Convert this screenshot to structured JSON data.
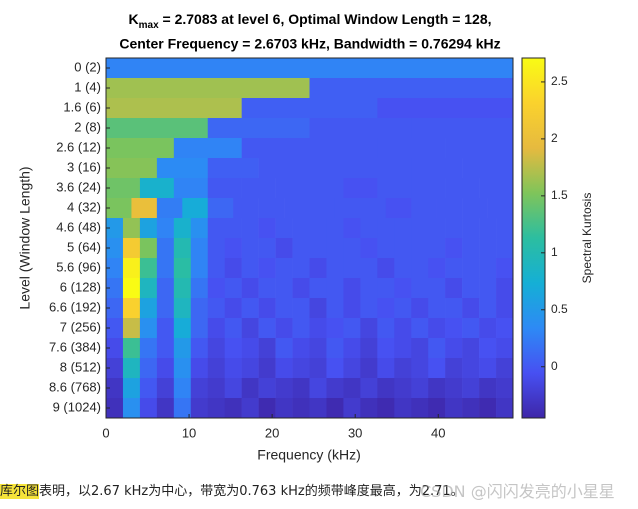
{
  "chart_data": {
    "type": "heatmap",
    "title_symbol": "K",
    "title_subscript": "max",
    "title_line1": " = 2.7083 at level 6, Optimal Window Length = 128,",
    "title_line2": "Center Frequency = 2.6703 kHz, Bandwidth = 0.76294 kHz",
    "xlabel": "Frequency (kHz)",
    "ylabel": "Level (Window Length)",
    "colorbar_label": "Spectral Kurtosis",
    "colormap": "parula",
    "categories": [
      "0  (2)",
      "1  (4)",
      "1.6  (6)",
      "2  (8)",
      "2.6  (12)",
      "3  (16)",
      "3.6  (24)",
      "4  (32)",
      "4.6  (48)",
      "5  (64)",
      "5.6  (96)",
      "6  (128)",
      "6.6  (192)",
      "7  (256)",
      "7.6  (384)",
      "8  (512)",
      "8.6  (768)",
      "9 (1024)"
    ],
    "xlim": [
      0,
      49
    ],
    "xticks": [
      0,
      10,
      20,
      30,
      40
    ],
    "clim": [
      -0.45,
      2.71
    ],
    "cticks": [
      0,
      0.5,
      1,
      1.5,
      2,
      2.5
    ],
    "z": [
      [
        0.3
      ],
      [
        1.65,
        0.05
      ],
      [
        1.7,
        0.05,
        -0.05
      ],
      [
        1.35,
        0.1,
        0.0,
        0.0
      ],
      [
        1.5,
        0.3,
        0.0,
        0.0,
        0.0,
        0.0
      ],
      [
        1.55,
        0.35,
        0.05,
        0.0,
        0.0,
        0.0,
        0.0,
        0.0
      ],
      [
        1.45,
        0.8,
        0.3,
        0.0,
        0.0,
        0.0,
        0.0,
        -0.05,
        0.0,
        0.0,
        0.0,
        0.0
      ],
      [
        1.5,
        2.0,
        0.25,
        0.7,
        0.1,
        0.0,
        0.0,
        0.0,
        0.0,
        0.0,
        0.0,
        -0.05,
        0.0,
        0.0,
        0.0,
        0.0
      ],
      [
        0.5,
        1.6,
        0.6,
        0.3,
        0.8,
        0.4,
        0.0,
        0.0,
        0.0,
        -0.05,
        0.0,
        0.0,
        0.0,
        0.0,
        -0.05,
        0.0,
        0.0,
        0.0,
        0.0,
        0.0,
        0.0,
        0.0,
        0.0,
        0.0
      ],
      [
        0.4,
        2.2,
        1.5,
        0.2,
        1.0,
        0.3,
        0.0,
        -0.05,
        0.0,
        0.0,
        -0.1,
        0.0,
        0.0,
        0.0,
        0.0,
        -0.05,
        0.0,
        0.0,
        0.0,
        0.0,
        -0.05,
        0.0,
        0.0,
        0.0
      ],
      [
        0.3,
        2.6,
        1.2,
        0.2,
        1.1,
        0.3,
        0.0,
        -0.1,
        0.0,
        -0.05,
        0.0,
        0.0,
        -0.1,
        0.0,
        0.0,
        0.0,
        -0.1,
        0.0,
        0.0,
        -0.05,
        0.0,
        0.0,
        0.0,
        -0.05
      ],
      [
        0.2,
        2.71,
        0.9,
        0.1,
        1.0,
        0.2,
        -0.05,
        0.0,
        -0.1,
        0.0,
        0.0,
        -0.1,
        0.0,
        0.0,
        -0.1,
        0.0,
        0.0,
        -0.05,
        0.0,
        0.0,
        -0.1,
        0.0,
        0.0,
        -0.1
      ],
      [
        0.1,
        2.3,
        0.6,
        0.1,
        0.9,
        0.1,
        0.0,
        -0.1,
        0.0,
        -0.1,
        0.0,
        0.0,
        -0.15,
        0.0,
        -0.1,
        0.0,
        -0.05,
        0.0,
        -0.1,
        0.0,
        0.0,
        -0.1,
        0.0,
        -0.1
      ],
      [
        0.0,
        1.8,
        0.4,
        0.0,
        0.7,
        0.1,
        -0.1,
        0.0,
        -0.15,
        0.0,
        -0.1,
        0.0,
        -0.1,
        -0.05,
        0.0,
        -0.15,
        0.0,
        -0.1,
        0.0,
        -0.1,
        -0.05,
        0.0,
        -0.1,
        -0.05
      ],
      [
        -0.1,
        1.2,
        0.2,
        0.0,
        0.5,
        0.0,
        -0.15,
        -0.05,
        -0.1,
        -0.2,
        0.0,
        -0.1,
        -0.15,
        0.0,
        -0.1,
        -0.2,
        -0.05,
        -0.1,
        -0.15,
        0.0,
        -0.1,
        -0.15,
        -0.05,
        -0.1
      ],
      [
        -0.2,
        0.9,
        0.1,
        -0.1,
        0.4,
        -0.1,
        -0.2,
        -0.1,
        -0.15,
        -0.25,
        -0.1,
        -0.15,
        -0.2,
        -0.05,
        -0.15,
        -0.25,
        -0.1,
        -0.2,
        -0.15,
        -0.05,
        -0.2,
        -0.15,
        -0.1,
        -0.2
      ],
      [
        -0.3,
        0.6,
        0.0,
        -0.2,
        0.3,
        -0.2,
        -0.25,
        -0.15,
        -0.3,
        -0.2,
        -0.25,
        -0.3,
        -0.15,
        -0.25,
        -0.3,
        -0.2,
        -0.3,
        -0.25,
        -0.2,
        -0.3,
        -0.25,
        -0.2,
        -0.3,
        -0.25
      ],
      [
        -0.35,
        0.4,
        -0.1,
        -0.3,
        0.2,
        -0.25,
        -0.3,
        -0.35,
        -0.25,
        -0.4,
        -0.3,
        -0.35,
        -0.3,
        -0.4,
        -0.25,
        -0.35,
        -0.4,
        -0.3,
        -0.35,
        -0.4,
        -0.3,
        -0.35,
        -0.4,
        -0.3
      ]
    ]
  },
  "caption": {
    "highlight": "库尔图",
    "text": "表明，以2.67 kHz为中心，带宽为0.763 kHz的频带峰度最高，为2.71。"
  },
  "watermark": "CSDN @闪闪发亮的小星星"
}
